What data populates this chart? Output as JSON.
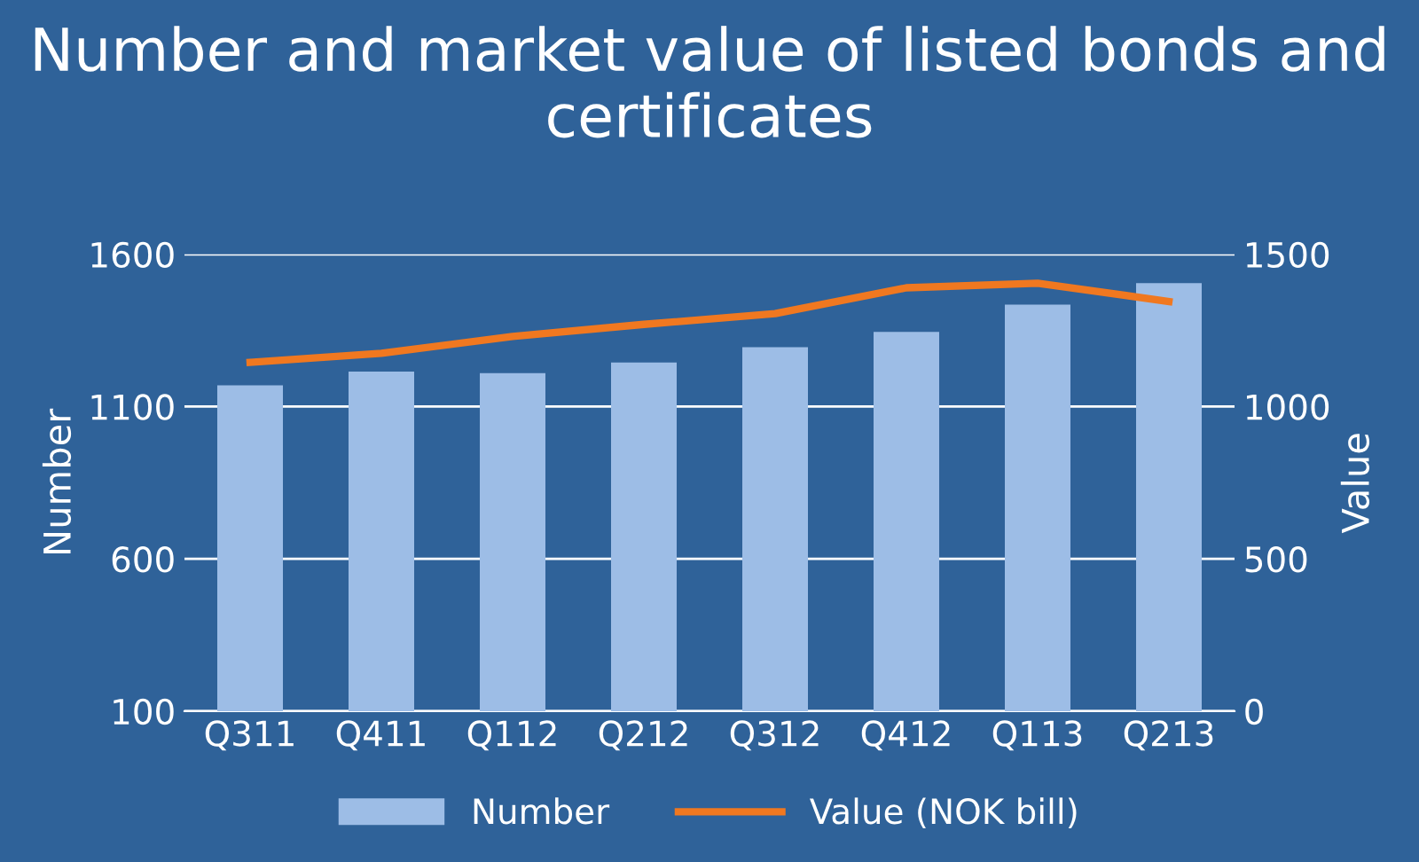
{
  "chart_data": {
    "type": "bar",
    "title": "Number and market value of listed bonds and certificates",
    "categories": [
      "Q311",
      "Q411",
      "Q112",
      "Q212",
      "Q312",
      "Q412",
      "Q113",
      "Q213"
    ],
    "series": [
      {
        "name": "Number",
        "color": "#9dbde6",
        "values": [
          1170,
          1215,
          1210,
          1245,
          1295,
          1345,
          1435,
          1505
        ]
      },
      {
        "name": "Value (NOK bill)",
        "type": "line",
        "axis": "y2",
        "color": "#f07820",
        "values": [
          1145,
          1175,
          1230,
          1270,
          1305,
          1390,
          1405,
          1345
        ]
      }
    ],
    "ylabel": "Number",
    "y2label": "Value",
    "ylim": [
      100,
      1600
    ],
    "yticks": [
      100,
      600,
      1100,
      1600
    ],
    "y2lim": [
      0,
      1500
    ],
    "y2ticks": [
      0,
      500,
      1000,
      1500
    ],
    "grid": "y",
    "legend": "bottom",
    "marker": "none"
  }
}
